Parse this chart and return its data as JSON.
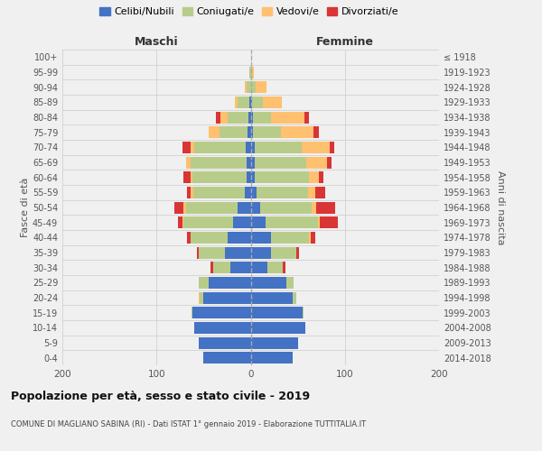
{
  "age_groups": [
    "0-4",
    "5-9",
    "10-14",
    "15-19",
    "20-24",
    "25-29",
    "30-34",
    "35-39",
    "40-44",
    "45-49",
    "50-54",
    "55-59",
    "60-64",
    "65-69",
    "70-74",
    "75-79",
    "80-84",
    "85-89",
    "90-94",
    "95-99",
    "100+"
  ],
  "birth_years": [
    "2014-2018",
    "2009-2013",
    "2004-2008",
    "1999-2003",
    "1994-1998",
    "1989-1993",
    "1984-1988",
    "1979-1983",
    "1974-1978",
    "1969-1973",
    "1964-1968",
    "1959-1963",
    "1954-1958",
    "1949-1953",
    "1944-1948",
    "1939-1943",
    "1934-1938",
    "1929-1933",
    "1924-1928",
    "1919-1923",
    "≤ 1918"
  ],
  "maschi": {
    "celibi": [
      50,
      55,
      60,
      62,
      50,
      45,
      22,
      27,
      24,
      19,
      14,
      6,
      4,
      4,
      5,
      3,
      2,
      1,
      0,
      0,
      0
    ],
    "coniugati": [
      0,
      0,
      0,
      1,
      4,
      10,
      18,
      28,
      40,
      52,
      55,
      55,
      58,
      60,
      55,
      30,
      22,
      13,
      4,
      1,
      0
    ],
    "vedovi": [
      0,
      0,
      0,
      0,
      1,
      0,
      0,
      0,
      0,
      1,
      2,
      3,
      2,
      5,
      4,
      12,
      8,
      3,
      2,
      0,
      0
    ],
    "divorziati": [
      0,
      0,
      0,
      0,
      0,
      0,
      3,
      2,
      4,
      5,
      10,
      4,
      7,
      0,
      8,
      0,
      5,
      0,
      0,
      0,
      0
    ]
  },
  "femmine": {
    "nubili": [
      45,
      50,
      58,
      55,
      45,
      38,
      18,
      22,
      22,
      16,
      10,
      6,
      4,
      4,
      4,
      2,
      2,
      1,
      0,
      0,
      0
    ],
    "coniugate": [
      0,
      0,
      0,
      1,
      3,
      8,
      16,
      26,
      40,
      55,
      55,
      55,
      58,
      55,
      50,
      30,
      20,
      12,
      5,
      1,
      0
    ],
    "vedove": [
      0,
      0,
      0,
      0,
      0,
      0,
      0,
      0,
      2,
      2,
      5,
      8,
      10,
      22,
      30,
      35,
      35,
      20,
      12,
      2,
      0
    ],
    "divorziate": [
      0,
      0,
      0,
      0,
      0,
      0,
      3,
      3,
      5,
      20,
      20,
      10,
      5,
      5,
      5,
      5,
      5,
      0,
      0,
      0,
      0
    ]
  },
  "colors": {
    "celibi": "#4472c4",
    "coniugati": "#b8cc8a",
    "vedovi": "#ffc06f",
    "divorziati": "#d93535"
  },
  "xlim": 200,
  "title": "Popolazione per età, sesso e stato civile - 2019",
  "subtitle": "COMUNE DI MAGLIANO SABINA (RI) - Dati ISTAT 1° gennaio 2019 - Elaborazione TUTTITALIA.IT",
  "ylabel_left": "Fasce di età",
  "ylabel_right": "Anni di nascita",
  "label_maschi": "Maschi",
  "label_femmine": "Femmine",
  "legend_labels": [
    "Celibi/Nubili",
    "Coniugati/e",
    "Vedovi/e",
    "Divorziati/e"
  ],
  "bg_color": "#f0f0f0"
}
